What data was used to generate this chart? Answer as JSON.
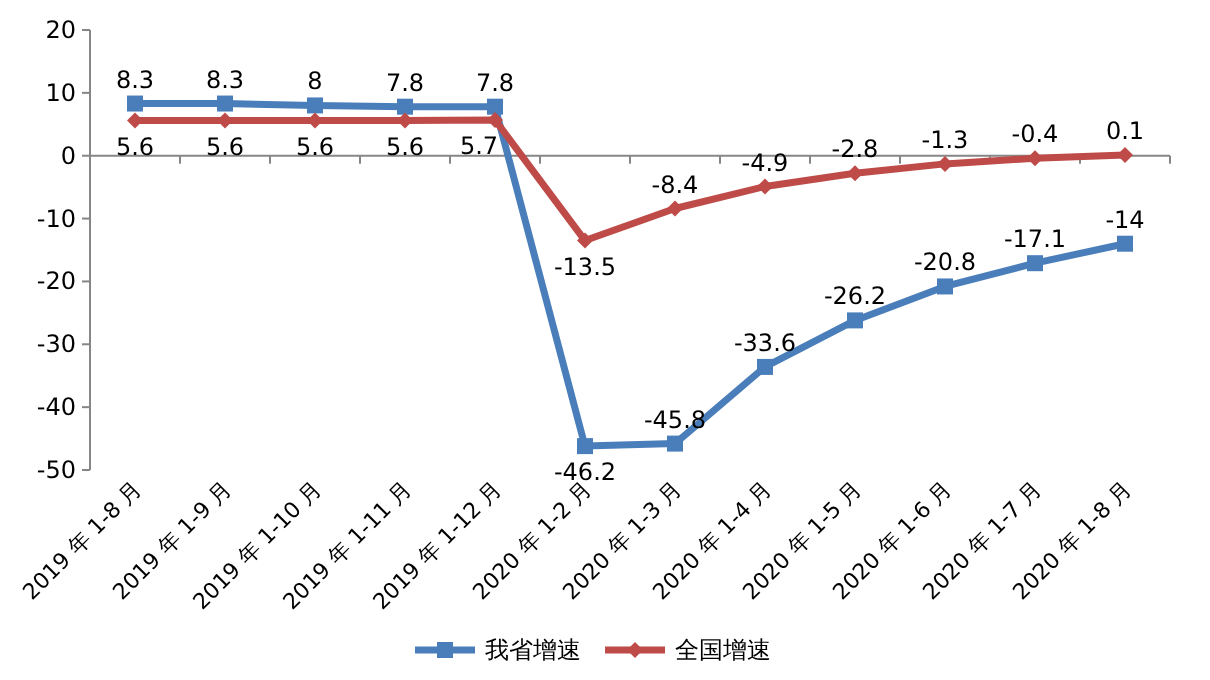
{
  "chart_data": {
    "type": "line",
    "categories": [
      "2019 年 1-8 月",
      "2019 年 1-9 月",
      "2019 年 1-10 月",
      "2019 年 1-11 月",
      "2019 年 1-12 月",
      "2020 年 1-2 月",
      "2020 年 1-3 月",
      "2020 年 1-4 月",
      "2020 年 1-5 月",
      "2020 年 1-6 月",
      "2020 年 1-7 月",
      "2020 年 1-8 月"
    ],
    "series": [
      {
        "name": "我省增速",
        "color": "#4a7ebb",
        "marker": "square",
        "values": [
          8.3,
          8.3,
          8,
          7.8,
          7.8,
          -46.2,
          -45.8,
          -33.6,
          -26.2,
          -20.8,
          -17.1,
          -14
        ]
      },
      {
        "name": "全国增速",
        "color": "#be4b48",
        "marker": "diamond",
        "values": [
          5.6,
          5.6,
          5.6,
          5.6,
          5.7,
          -13.5,
          -8.4,
          -4.9,
          -2.8,
          -1.3,
          -0.4,
          0.1
        ]
      }
    ],
    "ylim": [
      -50,
      20
    ],
    "yticks": [
      -50,
      -40,
      -30,
      -20,
      -10,
      0,
      10,
      20
    ],
    "data_labels": true,
    "legend": "bottom"
  }
}
